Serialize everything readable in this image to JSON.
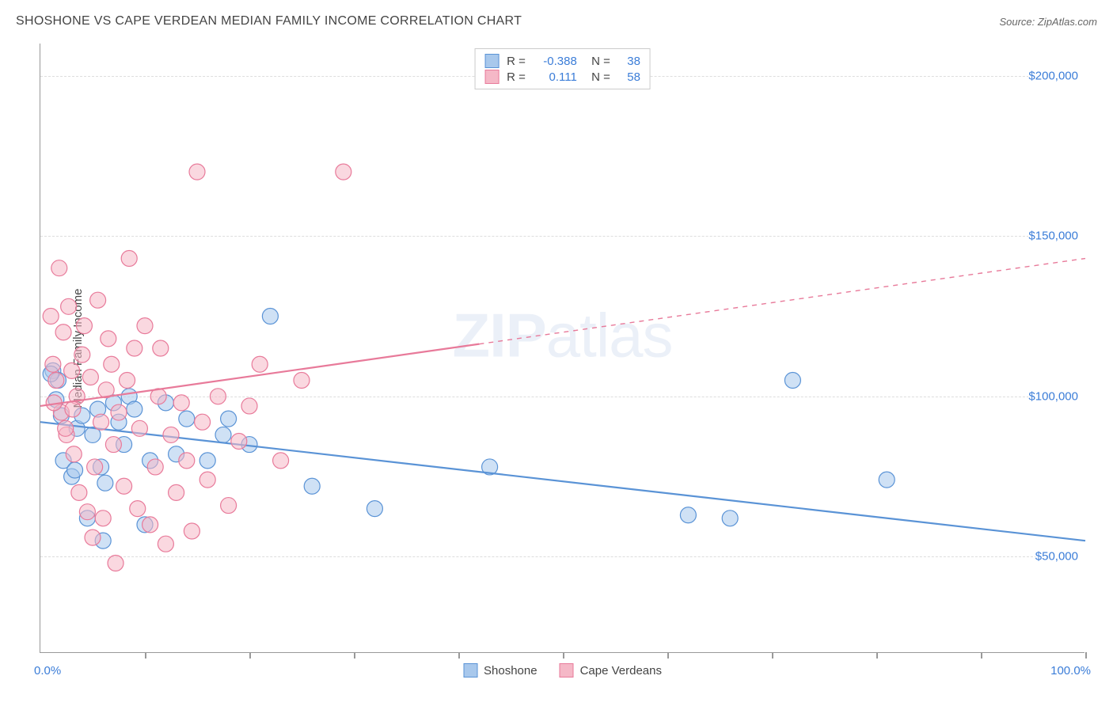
{
  "title": "SHOSHONE VS CAPE VERDEAN MEDIAN FAMILY INCOME CORRELATION CHART",
  "source_label": "Source: ",
  "source_name": "ZipAtlas.com",
  "watermark": "ZIPatlas",
  "chart": {
    "type": "scatter",
    "y_axis_title": "Median Family Income",
    "xlim": [
      0,
      100
    ],
    "ylim": [
      20000,
      210000
    ],
    "x_tick_positions": [
      0,
      10,
      20,
      30,
      40,
      50,
      60,
      70,
      80,
      90,
      100
    ],
    "x_label_min": "0.0%",
    "x_label_max": "100.0%",
    "y_gridlines": [
      {
        "value": 50000,
        "label": "$50,000"
      },
      {
        "value": 100000,
        "label": "$100,000"
      },
      {
        "value": 150000,
        "label": "$150,000"
      },
      {
        "value": 200000,
        "label": "$200,000"
      }
    ],
    "marker_radius": 10,
    "marker_opacity": 0.55,
    "line_width": 2.2,
    "series": [
      {
        "name": "Shoshone",
        "color_fill": "#a8c8ec",
        "color_stroke": "#5a93d6",
        "r_value": "-0.388",
        "n_value": "38",
        "regression": {
          "x1": 0,
          "y1": 92000,
          "x2": 100,
          "y2": 55000,
          "solid_until_x": 100
        },
        "points": [
          [
            1.2,
            108000
          ],
          [
            1.5,
            99000
          ],
          [
            1.7,
            105000
          ],
          [
            2.0,
            94000
          ],
          [
            2.2,
            80000
          ],
          [
            3.0,
            75000
          ],
          [
            3.3,
            77000
          ],
          [
            3.5,
            90000
          ],
          [
            4.0,
            94000
          ],
          [
            4.5,
            62000
          ],
          [
            5.0,
            88000
          ],
          [
            5.5,
            96000
          ],
          [
            5.8,
            78000
          ],
          [
            6.0,
            55000
          ],
          [
            6.2,
            73000
          ],
          [
            7.0,
            98000
          ],
          [
            7.5,
            92000
          ],
          [
            8.0,
            85000
          ],
          [
            8.5,
            100000
          ],
          [
            9.0,
            96000
          ],
          [
            10.0,
            60000
          ],
          [
            10.5,
            80000
          ],
          [
            12.0,
            98000
          ],
          [
            13.0,
            82000
          ],
          [
            14.0,
            93000
          ],
          [
            16.0,
            80000
          ],
          [
            17.5,
            88000
          ],
          [
            18.0,
            93000
          ],
          [
            20.0,
            85000
          ],
          [
            22.0,
            125000
          ],
          [
            26.0,
            72000
          ],
          [
            32.0,
            65000
          ],
          [
            43.0,
            78000
          ],
          [
            62.0,
            63000
          ],
          [
            66.0,
            62000
          ],
          [
            72.0,
            105000
          ],
          [
            81.0,
            74000
          ],
          [
            1.0,
            107000
          ]
        ]
      },
      {
        "name": "Cape Verdeans",
        "color_fill": "#f5b8c7",
        "color_stroke": "#e87a9a",
        "r_value": "0.111",
        "n_value": "58",
        "regression": {
          "x1": 0,
          "y1": 97000,
          "x2": 100,
          "y2": 143000,
          "solid_until_x": 42
        },
        "points": [
          [
            1.0,
            125000
          ],
          [
            1.2,
            110000
          ],
          [
            1.5,
            105000
          ],
          [
            1.8,
            140000
          ],
          [
            2.0,
            95000
          ],
          [
            2.2,
            120000
          ],
          [
            2.5,
            88000
          ],
          [
            2.7,
            128000
          ],
          [
            3.0,
            108000
          ],
          [
            3.2,
            82000
          ],
          [
            3.5,
            100000
          ],
          [
            3.7,
            70000
          ],
          [
            4.0,
            113000
          ],
          [
            4.2,
            122000
          ],
          [
            4.5,
            64000
          ],
          [
            5.0,
            56000
          ],
          [
            5.2,
            78000
          ],
          [
            5.5,
            130000
          ],
          [
            5.8,
            92000
          ],
          [
            6.0,
            62000
          ],
          [
            6.3,
            102000
          ],
          [
            6.5,
            118000
          ],
          [
            7.0,
            85000
          ],
          [
            7.2,
            48000
          ],
          [
            7.5,
            95000
          ],
          [
            8.0,
            72000
          ],
          [
            8.3,
            105000
          ],
          [
            8.5,
            143000
          ],
          [
            9.0,
            115000
          ],
          [
            9.3,
            65000
          ],
          [
            9.5,
            90000
          ],
          [
            10.0,
            122000
          ],
          [
            10.5,
            60000
          ],
          [
            11.0,
            78000
          ],
          [
            11.3,
            100000
          ],
          [
            11.5,
            115000
          ],
          [
            12.0,
            54000
          ],
          [
            12.5,
            88000
          ],
          [
            13.0,
            70000
          ],
          [
            13.5,
            98000
          ],
          [
            14.0,
            80000
          ],
          [
            14.5,
            58000
          ],
          [
            15.0,
            170000
          ],
          [
            15.5,
            92000
          ],
          [
            16.0,
            74000
          ],
          [
            17.0,
            100000
          ],
          [
            18.0,
            66000
          ],
          [
            19.0,
            86000
          ],
          [
            20.0,
            97000
          ],
          [
            21.0,
            110000
          ],
          [
            23.0,
            80000
          ],
          [
            25.0,
            105000
          ],
          [
            29.0,
            170000
          ],
          [
            1.3,
            98000
          ],
          [
            2.4,
            90000
          ],
          [
            3.1,
            96000
          ],
          [
            4.8,
            106000
          ],
          [
            6.8,
            110000
          ]
        ]
      }
    ]
  },
  "legend_bottom": [
    {
      "label": "Shoshone",
      "fill": "#a8c8ec",
      "stroke": "#5a93d6"
    },
    {
      "label": "Cape Verdeans",
      "fill": "#f5b8c7",
      "stroke": "#e87a9a"
    }
  ]
}
